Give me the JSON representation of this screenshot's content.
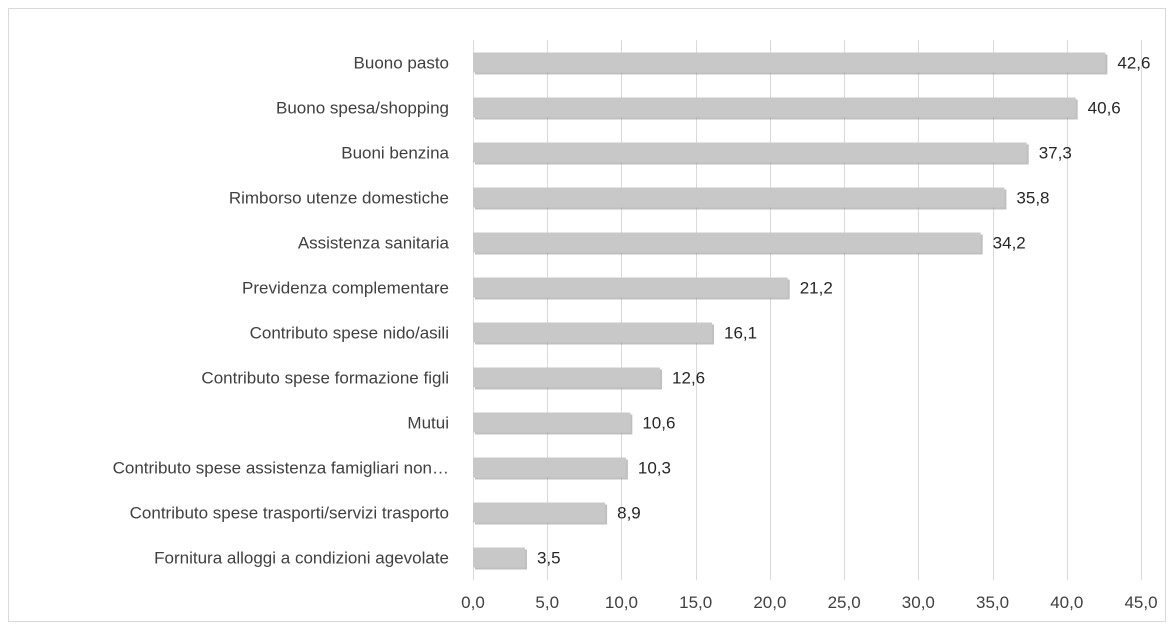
{
  "chart_data": {
    "type": "bar",
    "orientation": "horizontal",
    "categories": [
      "Buono pasto",
      "Buono spesa/shopping",
      "Buoni benzina",
      "Rimborso utenze domestiche",
      "Assistenza sanitaria",
      "Previdenza complementare",
      "Contributo spese nido/asili",
      "Contributo spese formazione figli",
      "Mutui",
      "Contributo spese assistenza famigliari non…",
      "Contributo spese trasporti/servizi trasporto",
      "Fornitura alloggi a condizioni agevolate"
    ],
    "values": [
      42.6,
      40.6,
      37.3,
      35.8,
      34.2,
      21.2,
      16.1,
      12.6,
      10.6,
      10.3,
      8.9,
      3.5
    ],
    "value_labels": [
      "42,6",
      "40,6",
      "37,3",
      "35,8",
      "34,2",
      "21,2",
      "16,1",
      "12,6",
      "10,6",
      "10,3",
      "8,9",
      "3,5"
    ],
    "xlim": [
      0,
      45
    ],
    "xticks": [
      0,
      5,
      10,
      15,
      20,
      25,
      30,
      35,
      40,
      45
    ],
    "xtick_labels": [
      "0,0",
      "5,0",
      "10,0",
      "15,0",
      "20,0",
      "25,0",
      "30,0",
      "35,0",
      "40,0",
      "45,0"
    ],
    "title": "",
    "xlabel": "",
    "ylabel": "",
    "grid": true,
    "legend": "none",
    "colors": {
      "bar": "#c8c8c8",
      "grid": "#d9d9d9",
      "text": "#404040",
      "border": "#d9d9d9"
    }
  }
}
